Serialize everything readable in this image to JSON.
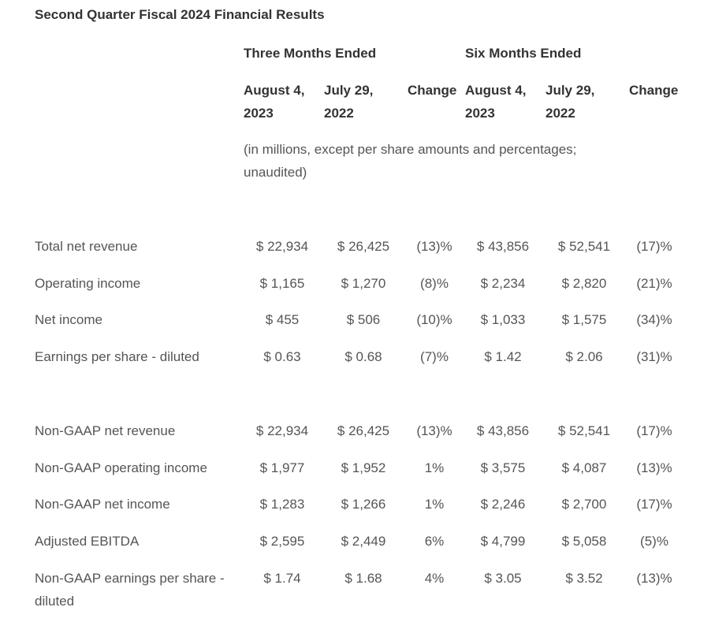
{
  "title": "Second Quarter Fiscal 2024 Financial Results",
  "headers": {
    "three_months": "Three Months Ended",
    "six_months": "Six Months Ended",
    "col1_line1": "August 4,",
    "col1_line2": "2023",
    "col2_line1": "July 29,",
    "col2_line2": "2022",
    "col3": "Change",
    "col4_line1": "August 4,",
    "col4_line2": "2023",
    "col5_line1": "July 29,",
    "col5_line2": "2022",
    "col6": "Change"
  },
  "note": "(in millions, except per share amounts and percentages; unaudited)",
  "gaap_rows": [
    {
      "label": "Total net revenue",
      "cells": [
        "$ 22,934",
        "$ 26,425",
        "(13)%",
        "$ 43,856",
        "$ 52,541",
        "(17)%"
      ]
    },
    {
      "label": "Operating income",
      "cells": [
        "$ 1,165",
        "$ 1,270",
        "(8)%",
        "$ 2,234",
        "$ 2,820",
        "(21)%"
      ]
    },
    {
      "label": "Net income",
      "cells": [
        "$ 455",
        "$ 506",
        "(10)%",
        "$ 1,033",
        "$ 1,575",
        "(34)%"
      ]
    },
    {
      "label": "Earnings per share - diluted",
      "cells": [
        "$ 0.63",
        "$ 0.68",
        "(7)%",
        "$ 1.42",
        "$ 2.06",
        "(31)%"
      ]
    }
  ],
  "non_gaap_rows": [
    {
      "label": "Non-GAAP net revenue",
      "cells": [
        "$ 22,934",
        "$ 26,425",
        "(13)%",
        "$ 43,856",
        "$ 52,541",
        "(17)%"
      ]
    },
    {
      "label": "Non-GAAP operating income",
      "cells": [
        "$ 1,977",
        "$ 1,952",
        "1%",
        "$ 3,575",
        "$ 4,087",
        "(13)%"
      ]
    },
    {
      "label": "Non-GAAP net income",
      "cells": [
        "$ 1,283",
        "$ 1,266",
        "1%",
        "$ 2,246",
        "$ 2,700",
        "(17)%"
      ]
    },
    {
      "label": "Adjusted EBITDA",
      "cells": [
        "$ 2,595",
        "$ 2,449",
        "6%",
        "$ 4,799",
        "$ 5,058",
        "(5)%"
      ]
    },
    {
      "label": "Non-GAAP earnings per share - diluted",
      "label_line1": "Non-GAAP earnings per share -",
      "label_line2": "diluted",
      "cells": [
        "$ 1.74",
        "$ 1.68",
        "4%",
        "$ 3.05",
        "$ 3.52",
        "(13)%"
      ]
    }
  ]
}
